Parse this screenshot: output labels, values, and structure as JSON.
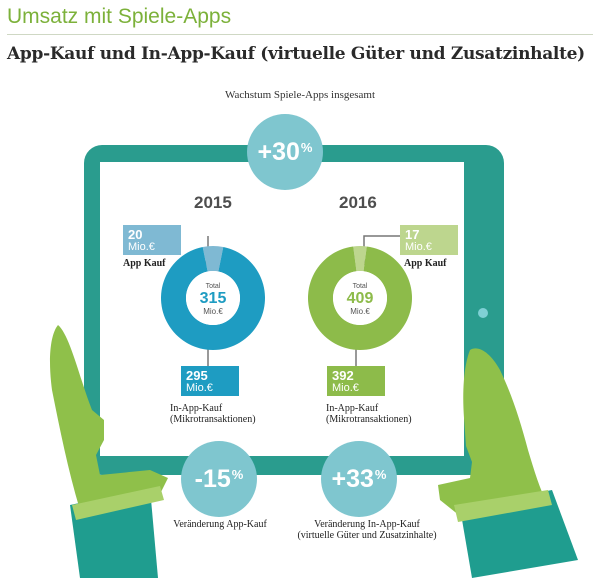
{
  "header": {
    "title": "Umsatz mit Spiele-Apps",
    "subtitle": "App-Kauf und In-App-Kauf (virtuelle Güter und Zusatzinhalte)"
  },
  "growth": {
    "label": "Wachstum Spiele-Apps insgesamt",
    "value": "+30",
    "unit": "%"
  },
  "changes": {
    "app_kauf": {
      "value": "-15",
      "unit": "%",
      "label": "Veränderung App-Kauf"
    },
    "in_app_kauf": {
      "value": "+33",
      "unit": "%",
      "label_line1": "Veränderung In-App-Kauf",
      "label_line2": "(virtuelle Güter und Zusatzinhalte)"
    }
  },
  "colors": {
    "tablet": "#2a9c8e",
    "y2015_main": "#1e9cc2",
    "y2015_light": "#7fb9d3",
    "y2016_main": "#8dbb4a",
    "y2016_light": "#bdd68e",
    "bubble": "#7fc6cf"
  },
  "chart_data": [
    {
      "type": "pie",
      "title": "2015",
      "total_label": "Total",
      "total": 315,
      "total_unit": "Mio.€",
      "slices": [
        {
          "name": "App Kauf",
          "value": 20,
          "unit": "Mio.€"
        },
        {
          "name": "In-App-Kauf",
          "name_line2": "(Mikrotransaktionen)",
          "value": 295,
          "unit": "Mio.€"
        }
      ]
    },
    {
      "type": "pie",
      "title": "2016",
      "total_label": "Total",
      "total": 409,
      "total_unit": "Mio.€",
      "slices": [
        {
          "name": "App Kauf",
          "value": 17,
          "unit": "Mio.€"
        },
        {
          "name": "In-App-Kauf",
          "name_line2": "(Mikrotransaktionen)",
          "value": 392,
          "unit": "Mio.€"
        }
      ]
    }
  ]
}
